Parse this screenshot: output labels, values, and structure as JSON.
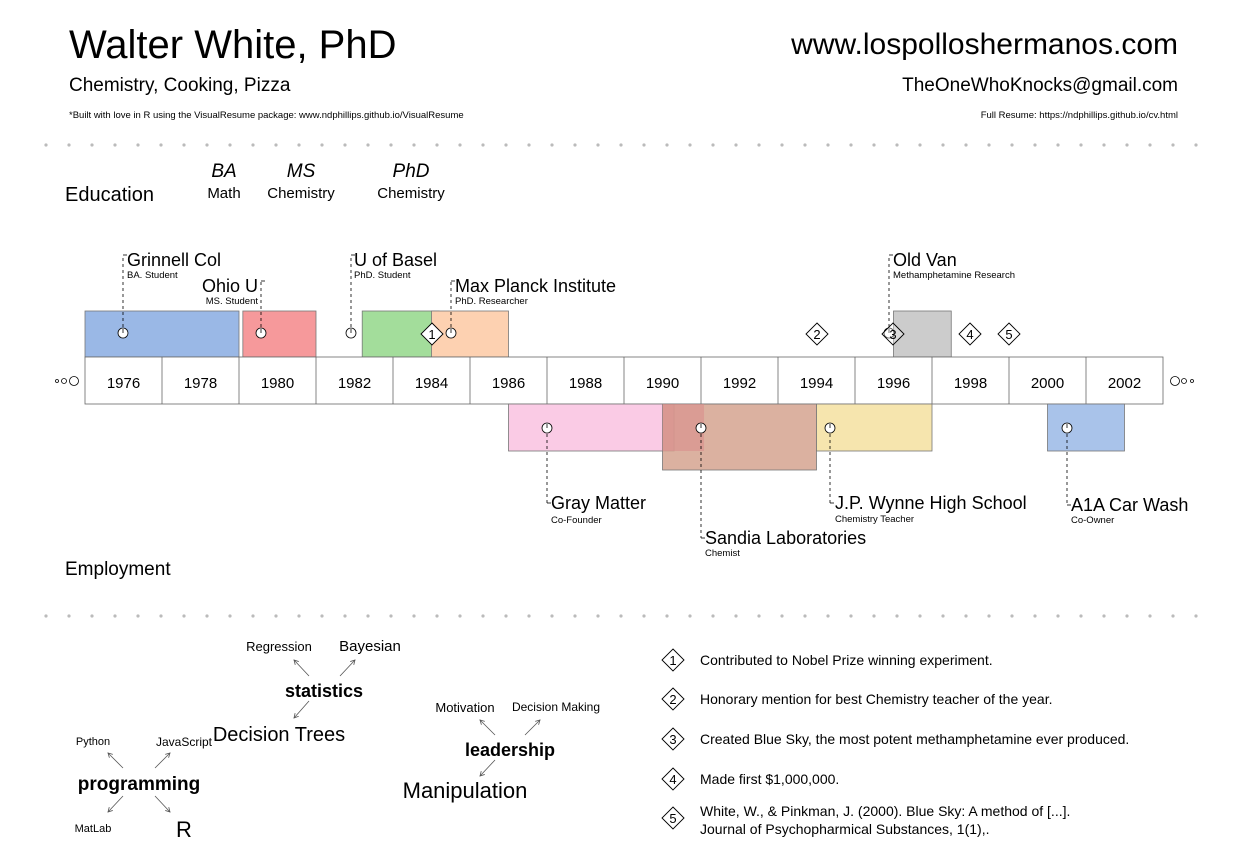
{
  "header": {
    "name": "Walter White, PhD",
    "subtitle": "Chemistry, Cooking, Pizza",
    "footnote": "*Built with love in R using the VisualResume package: www.ndphillips.github.io/VisualResume",
    "website": "www.lospolloshermanos.com",
    "email": "TheOneWhoKnocks@gmail.com",
    "resume_link": "Full Resume: https://ndphillips.github.io/cv.html"
  },
  "sections": {
    "education": "Education",
    "employment": "Employment"
  },
  "chart_data": {
    "type": "timeline",
    "year_range": [
      1975,
      2003
    ],
    "tick_labels": [
      "1976",
      "1978",
      "1980",
      "1982",
      "1984",
      "1986",
      "1988",
      "1990",
      "1992",
      "1994",
      "1996",
      "1998",
      "2000",
      "2002"
    ],
    "degrees": [
      {
        "title": "BA",
        "field": "Math",
        "year": 1979.2
      },
      {
        "title": "MS",
        "field": "Chemistry",
        "year": 1980.5
      },
      {
        "title": "PhD",
        "field": "Chemistry",
        "year": 1984
      }
    ],
    "education": [
      {
        "title": "Grinnell Col",
        "sub": "BA. Student",
        "start": 1975,
        "end": 1979,
        "color": "#9ab8e6"
      },
      {
        "title": "Ohio U",
        "sub": "MS. Student",
        "start": 1979.1,
        "end": 1981,
        "color": "#f6999b"
      },
      {
        "title": "U of Basel",
        "sub": "PhD. Student",
        "start": 1982.2,
        "end": 1984.2,
        "color": "#a3dd9b"
      },
      {
        "title": "Max Planck Institute",
        "sub": "PhD. Researcher",
        "start": 1984,
        "end": 1986,
        "color": "#fdd1b1"
      },
      {
        "title": "Old Van",
        "sub": "Methamphetamine Research",
        "start": 1996,
        "end": 1997.5,
        "color": "#cccccc"
      }
    ],
    "employment": [
      {
        "title": "Gray Matter",
        "sub": "Co-Founder",
        "start": 1986,
        "end": 1990.3,
        "color": "#f9c2e0"
      },
      {
        "title": "Sandia Laboratories",
        "sub": "Chemist",
        "start": 1990,
        "end": 1994,
        "color": "#d5a38f"
      },
      {
        "title": "J.P. Wynne High School",
        "sub": "Chemistry Teacher",
        "start": 1994,
        "end": 1997,
        "color": "#f5e0a0"
      },
      {
        "title": "A1A Car Wash",
        "sub": "Co-Owner",
        "start": 2000,
        "end": 2002,
        "color": "#9ab8e6"
      }
    ],
    "milestones": [
      {
        "number": "1",
        "year": 1984,
        "text": "Contributed to Nobel Prize winning experiment."
      },
      {
        "number": "2",
        "year": 1994,
        "text": "Honorary mention for best Chemistry teacher of the year."
      },
      {
        "number": "3",
        "year": 1996,
        "text": "Created Blue Sky, the most potent methamphetamine ever produced."
      },
      {
        "number": "4",
        "year": 1998,
        "text": "Made first $1,000,000."
      },
      {
        "number": "5",
        "year": 1999,
        "text": "White, W., & Pinkman, J. (2000). Blue Sky: A method of [...].",
        "text2": "Journal of Psychopharmical Substances, 1(1),."
      }
    ],
    "skills": [
      {
        "name": "statistics",
        "subs": [
          "Regression",
          "Bayesian",
          "Decision Trees"
        ]
      },
      {
        "name": "leadership",
        "subs": [
          "Motivation",
          "Decision Making",
          "Manipulation"
        ]
      },
      {
        "name": "programming",
        "subs": [
          "Python",
          "JavaScript",
          "MatLab",
          "R"
        ]
      }
    ]
  }
}
